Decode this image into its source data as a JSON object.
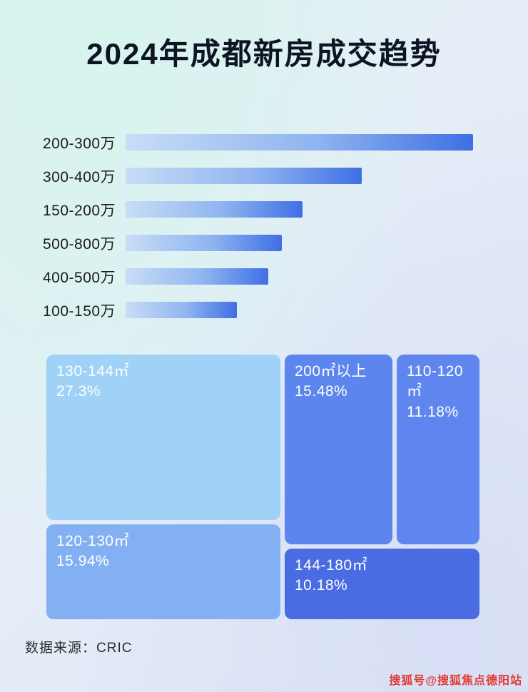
{
  "title": "2024年成都新房成交趋势",
  "source": "数据来源：CRIC",
  "watermark": "搜狐号@搜狐焦点德阳站",
  "colors": {
    "background_start": "#def2ee",
    "background_end": "#dde4f6",
    "title_color": "#0d1524",
    "bar_gradient_start": "#c8ddf6",
    "bar_gradient_end": "#3f6fe4",
    "treemap_block_light": "#9fd2f6",
    "treemap_block_medium": "#82b0f2",
    "treemap_block_blue": "#5c86ee",
    "treemap_block_dark": "#4a6ce2",
    "watermark_color": "#e53935"
  },
  "chart_data": [
    {
      "type": "bar",
      "orientation": "horizontal",
      "categories": [
        "200-300万",
        "300-400万",
        "150-200万",
        "500-800万",
        "400-500万",
        "100-150万"
      ],
      "values": [
        100,
        68,
        51,
        45,
        41,
        32
      ],
      "values_are_relative": true,
      "xlabel": "",
      "ylabel": "",
      "grid": false,
      "legend": false
    },
    {
      "type": "treemap",
      "items": [
        {
          "label": "130-144㎡",
          "value_pct": 27.3,
          "value_label": "27.3%"
        },
        {
          "label": "200㎡以上",
          "value_pct": 15.48,
          "value_label": "15.48%"
        },
        {
          "label": "110-120㎡",
          "value_pct": 11.18,
          "value_label": "11.18%"
        },
        {
          "label": "120-130㎡",
          "value_pct": 15.94,
          "value_label": "15.94%"
        },
        {
          "label": "144-180㎡",
          "value_pct": 10.18,
          "value_label": "10.18%"
        }
      ]
    }
  ]
}
